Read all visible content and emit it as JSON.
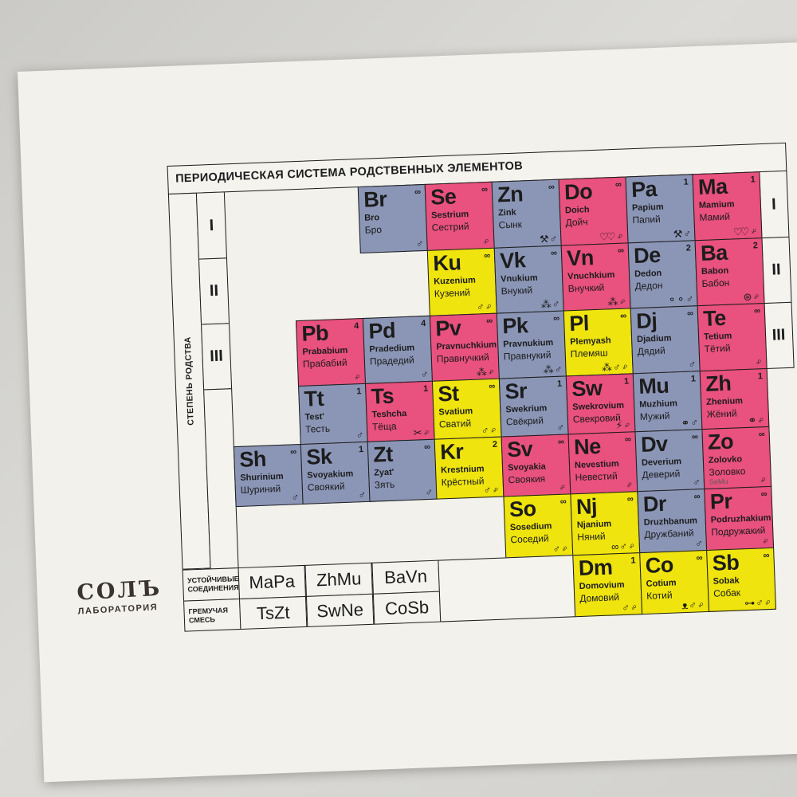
{
  "title": "ПЕРИОДИЧЕСКАЯ СИСТЕМА РОДСТВЕННЫХ ЭЛЕМЕНТОВ",
  "side_label": "СТЕПЕНЬ РОДСТВА",
  "row_numerals": [
    "I",
    "II",
    "III"
  ],
  "logo": {
    "line1": "СОЛЪ",
    "line2": "ЛАБОРАТОРИЯ"
  },
  "colors": {
    "pink": "#e9517f",
    "blue": "#8b96b7",
    "yellow": "#efe40d",
    "card": "#f2f1ec",
    "line": "#1b1b1b"
  },
  "legend": {
    "rows": [
      {
        "label": "УСТОЙЧИВЫЕ\nСОЕДИНЕНИЯ",
        "values": [
          "MaPa",
          "ZhMu",
          "BaVn"
        ]
      },
      {
        "label": "ГРЕМУЧАЯ\nСМЕСЬ",
        "values": [
          "TsZt",
          "SwNe",
          "CoSb"
        ]
      }
    ]
  },
  "icon_glyphs": {
    "male": "♂",
    "female": "♀",
    "pick-hammer": "⚒",
    "hearts": "♡♡",
    "balls": "⁂",
    "spectacles": "⚬⚬",
    "yarn": "⊛",
    "scissors": "✂",
    "lightning": "⚡",
    "rings": "⚭",
    "loops": "∞",
    "mouse": "ᴥ",
    "bone": "⊶"
  },
  "cells": [
    {
      "symbol": "Br",
      "latin": "Bro",
      "cyrillic": "Бро",
      "sup": "∞",
      "color": "blue",
      "icons": [
        "male"
      ],
      "row": 1,
      "col": 3
    },
    {
      "symbol": "Se",
      "latin": "Sestrium",
      "cyrillic": "Сестрий",
      "sup": "∞",
      "color": "pink",
      "icons": [
        "female"
      ],
      "row": 1,
      "col": 4
    },
    {
      "symbol": "Zn",
      "latin": "Zink",
      "cyrillic": "Сынк",
      "sup": "∞",
      "color": "blue",
      "icons": [
        "pick-hammer",
        "male"
      ],
      "row": 1,
      "col": 5
    },
    {
      "symbol": "Do",
      "latin": "Doich",
      "cyrillic": "Дойч",
      "sup": "∞",
      "color": "pink",
      "icons": [
        "hearts",
        "female"
      ],
      "row": 1,
      "col": 6
    },
    {
      "symbol": "Pa",
      "latin": "Papium",
      "cyrillic": "Папий",
      "sup": "1",
      "color": "blue",
      "icons": [
        "pick-hammer",
        "male"
      ],
      "row": 1,
      "col": 7
    },
    {
      "symbol": "Ma",
      "latin": "Mamium",
      "cyrillic": "Мамий",
      "sup": "1",
      "color": "pink",
      "icons": [
        "hearts",
        "female"
      ],
      "row": 1,
      "col": 8
    },
    {
      "symbol": "Ku",
      "latin": "Kuzenium",
      "cyrillic": "Кузений",
      "sup": "∞",
      "color": "yellow",
      "icons": [
        "male",
        "female"
      ],
      "row": 2,
      "col": 4
    },
    {
      "symbol": "Vk",
      "latin": "Vnukium",
      "cyrillic": "Внукий",
      "sup": "∞",
      "color": "blue",
      "icons": [
        "balls",
        "male"
      ],
      "row": 2,
      "col": 5
    },
    {
      "symbol": "Vn",
      "latin": "Vnuchkium",
      "cyrillic": "Внучкий",
      "sup": "∞",
      "color": "pink",
      "icons": [
        "balls",
        "female"
      ],
      "row": 2,
      "col": 6
    },
    {
      "symbol": "De",
      "latin": "Dedon",
      "cyrillic": "Дедон",
      "sup": "2",
      "color": "blue",
      "icons": [
        "spectacles",
        "male"
      ],
      "row": 2,
      "col": 7
    },
    {
      "symbol": "Ba",
      "latin": "Babon",
      "cyrillic": "Бабон",
      "sup": "2",
      "color": "pink",
      "icons": [
        "yarn",
        "female"
      ],
      "row": 2,
      "col": 8
    },
    {
      "symbol": "Pb",
      "latin": "Prababium",
      "cyrillic": "Прабабий",
      "sup": "4",
      "color": "pink",
      "icons": [
        "female"
      ],
      "row": 3,
      "col": 2
    },
    {
      "symbol": "Pd",
      "latin": "Pradedium",
      "cyrillic": "Прадедий",
      "sup": "4",
      "color": "blue",
      "icons": [
        "male"
      ],
      "row": 3,
      "col": 3
    },
    {
      "symbol": "Pv",
      "latin": "Pravnuchkium",
      "cyrillic": "Правнучкий",
      "sup": "∞",
      "color": "pink",
      "icons": [
        "balls",
        "female"
      ],
      "row": 3,
      "col": 4
    },
    {
      "symbol": "Pk",
      "latin": "Pravnukium",
      "cyrillic": "Правнукий",
      "sup": "∞",
      "color": "blue",
      "icons": [
        "balls",
        "male"
      ],
      "row": 3,
      "col": 5
    },
    {
      "symbol": "Pl",
      "latin": "Plemyash",
      "cyrillic": "Племяш",
      "sup": "∞",
      "color": "yellow",
      "icons": [
        "balls",
        "male",
        "female"
      ],
      "row": 3,
      "col": 6
    },
    {
      "symbol": "Dj",
      "latin": "Djadium",
      "cyrillic": "Дядий",
      "sup": "∞",
      "color": "blue",
      "icons": [
        "male"
      ],
      "row": 3,
      "col": 7
    },
    {
      "symbol": "Te",
      "latin": "Tetium",
      "cyrillic": "Тётий",
      "sup": "∞",
      "color": "pink",
      "icons": [
        "female"
      ],
      "row": 3,
      "col": 8
    },
    {
      "symbol": "Tt",
      "latin": "Test'",
      "cyrillic": "Тесть",
      "sup": "1",
      "color": "blue",
      "icons": [
        "male"
      ],
      "row": 4,
      "col": 2
    },
    {
      "symbol": "Ts",
      "latin": "Teshcha",
      "cyrillic": "Тёща",
      "sup": "1",
      "color": "pink",
      "icons": [
        "scissors",
        "female"
      ],
      "row": 4,
      "col": 3
    },
    {
      "symbol": "St",
      "latin": "Svatium",
      "cyrillic": "Сватий",
      "sup": "∞",
      "color": "yellow",
      "icons": [
        "male",
        "female"
      ],
      "row": 4,
      "col": 4
    },
    {
      "symbol": "Sr",
      "latin": "Swekrium",
      "cyrillic": "Свёкрий",
      "sup": "1",
      "color": "blue",
      "icons": [
        "male"
      ],
      "row": 4,
      "col": 5
    },
    {
      "symbol": "Sw",
      "latin": "Swekrovium",
      "cyrillic": "Свекровий",
      "sup": "1",
      "color": "pink",
      "icons": [
        "lightning",
        "female"
      ],
      "row": 4,
      "col": 6
    },
    {
      "symbol": "Mu",
      "latin": "Muzhium",
      "cyrillic": "Мужий",
      "sup": "1",
      "color": "blue",
      "icons": [
        "rings",
        "male"
      ],
      "row": 4,
      "col": 7
    },
    {
      "symbol": "Zh",
      "latin": "Zhenium",
      "cyrillic": "Жёний",
      "sup": "1",
      "color": "pink",
      "icons": [
        "rings",
        "female"
      ],
      "row": 4,
      "col": 8
    },
    {
      "symbol": "Sh",
      "latin": "Shurinium",
      "cyrillic": "Шуриний",
      "sup": "∞",
      "color": "blue",
      "icons": [
        "male"
      ],
      "row": 5,
      "col": 1
    },
    {
      "symbol": "Sk",
      "latin": "Svoyakium",
      "cyrillic": "Своякий",
      "sup": "1",
      "color": "blue",
      "icons": [
        "male"
      ],
      "row": 5,
      "col": 2
    },
    {
      "symbol": "Zt",
      "latin": "Zyat'",
      "cyrillic": "Зять",
      "sup": "∞",
      "color": "blue",
      "icons": [
        "male"
      ],
      "row": 5,
      "col": 3
    },
    {
      "symbol": "Kr",
      "latin": "Krestnium",
      "cyrillic": "Крёстный",
      "sup": "2",
      "color": "yellow",
      "icons": [
        "male",
        "female"
      ],
      "row": 5,
      "col": 4
    },
    {
      "symbol": "Sv",
      "latin": "Svoyakia",
      "cyrillic": "Своякия",
      "sup": "∞",
      "color": "pink",
      "icons": [
        "female"
      ],
      "row": 5,
      "col": 5
    },
    {
      "symbol": "Ne",
      "latin": "Nevestium",
      "cyrillic": "Невестий",
      "sup": "∞",
      "color": "pink",
      "icons": [
        "female"
      ],
      "row": 5,
      "col": 6
    },
    {
      "symbol": "Dv",
      "latin": "Deverium",
      "cyrillic": "Деверий",
      "sup": "∞",
      "color": "blue",
      "icons": [
        "male"
      ],
      "row": 5,
      "col": 7
    },
    {
      "symbol": "Zo",
      "latin": "Zolovko",
      "cyrillic": "Золовко",
      "sup": "∞",
      "color": "pink",
      "icons": [
        "female"
      ],
      "note": "SeMu",
      "row": 5,
      "col": 8
    },
    {
      "symbol": "So",
      "latin": "Sosedium",
      "cyrillic": "Соседий",
      "sup": "∞",
      "color": "yellow",
      "icons": [
        "male",
        "female"
      ],
      "row": 6,
      "col": 5
    },
    {
      "symbol": "Nj",
      "latin": "Njanium",
      "cyrillic": "Няний",
      "sup": "∞",
      "color": "yellow",
      "icons": [
        "loops",
        "male",
        "female"
      ],
      "row": 6,
      "col": 6
    },
    {
      "symbol": "Dr",
      "latin": "Druzhbanum",
      "cyrillic": "Дружбаний",
      "sup": "∞",
      "color": "blue",
      "icons": [
        "male"
      ],
      "row": 6,
      "col": 7
    },
    {
      "symbol": "Pr",
      "latin": "Podruzhakium",
      "cyrillic": "Подружакий",
      "sup": "∞",
      "color": "pink",
      "icons": [
        "female"
      ],
      "row": 6,
      "col": 8
    },
    {
      "symbol": "Dm",
      "latin": "Domovium",
      "cyrillic": "Домовий",
      "sup": "1",
      "color": "yellow",
      "icons": [
        "male",
        "female"
      ],
      "row": 7,
      "col": 6
    },
    {
      "symbol": "Co",
      "latin": "Cotium",
      "cyrillic": "Котий",
      "sup": "∞",
      "color": "yellow",
      "icons": [
        "mouse",
        "male",
        "female"
      ],
      "row": 7,
      "col": 7
    },
    {
      "symbol": "Sb",
      "latin": "Sobak",
      "cyrillic": "Собак",
      "sup": "∞",
      "color": "yellow",
      "icons": [
        "bone",
        "male",
        "female"
      ],
      "row": 7,
      "col": 8
    }
  ]
}
